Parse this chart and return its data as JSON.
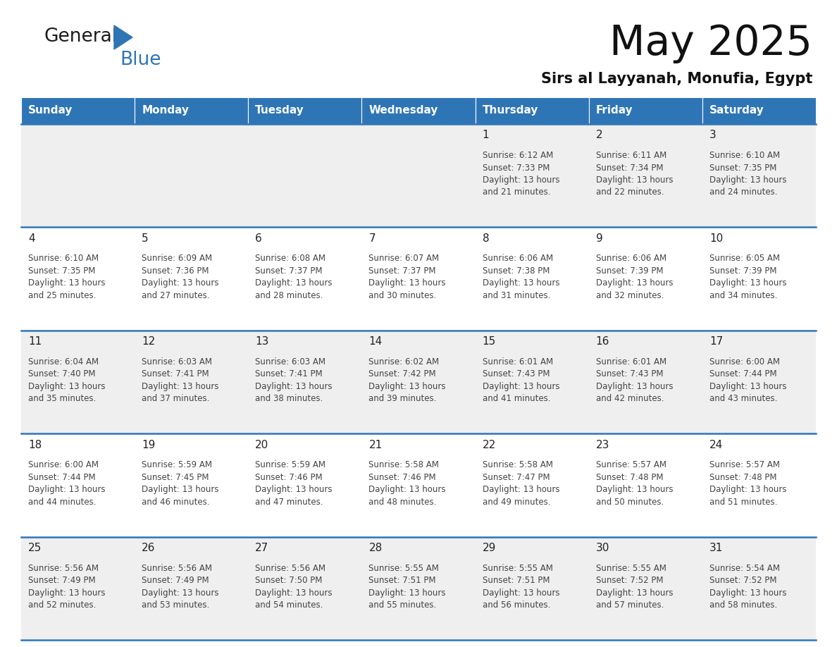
{
  "title": "May 2025",
  "subtitle": "Sirs al Layyanah, Monufia, Egypt",
  "days_of_week": [
    "Sunday",
    "Monday",
    "Tuesday",
    "Wednesday",
    "Thursday",
    "Friday",
    "Saturday"
  ],
  "header_bg": "#2E75B6",
  "header_text": "#FFFFFF",
  "row_bg_odd": "#EFEFEF",
  "row_bg_even": "#FFFFFF",
  "text_color": "#444444",
  "line_color": "#2E75B6",
  "calendar_data": [
    [
      {
        "day": "",
        "sunrise": "",
        "sunset": "",
        "daylight": ""
      },
      {
        "day": "",
        "sunrise": "",
        "sunset": "",
        "daylight": ""
      },
      {
        "day": "",
        "sunrise": "",
        "sunset": "",
        "daylight": ""
      },
      {
        "day": "",
        "sunrise": "",
        "sunset": "",
        "daylight": ""
      },
      {
        "day": "1",
        "sunrise": "6:12 AM",
        "sunset": "7:33 PM",
        "daylight": "13 hours and 21 minutes."
      },
      {
        "day": "2",
        "sunrise": "6:11 AM",
        "sunset": "7:34 PM",
        "daylight": "13 hours and 22 minutes."
      },
      {
        "day": "3",
        "sunrise": "6:10 AM",
        "sunset": "7:35 PM",
        "daylight": "13 hours and 24 minutes."
      }
    ],
    [
      {
        "day": "4",
        "sunrise": "6:10 AM",
        "sunset": "7:35 PM",
        "daylight": "13 hours and 25 minutes."
      },
      {
        "day": "5",
        "sunrise": "6:09 AM",
        "sunset": "7:36 PM",
        "daylight": "13 hours and 27 minutes."
      },
      {
        "day": "6",
        "sunrise": "6:08 AM",
        "sunset": "7:37 PM",
        "daylight": "13 hours and 28 minutes."
      },
      {
        "day": "7",
        "sunrise": "6:07 AM",
        "sunset": "7:37 PM",
        "daylight": "13 hours and 30 minutes."
      },
      {
        "day": "8",
        "sunrise": "6:06 AM",
        "sunset": "7:38 PM",
        "daylight": "13 hours and 31 minutes."
      },
      {
        "day": "9",
        "sunrise": "6:06 AM",
        "sunset": "7:39 PM",
        "daylight": "13 hours and 32 minutes."
      },
      {
        "day": "10",
        "sunrise": "6:05 AM",
        "sunset": "7:39 PM",
        "daylight": "13 hours and 34 minutes."
      }
    ],
    [
      {
        "day": "11",
        "sunrise": "6:04 AM",
        "sunset": "7:40 PM",
        "daylight": "13 hours and 35 minutes."
      },
      {
        "day": "12",
        "sunrise": "6:03 AM",
        "sunset": "7:41 PM",
        "daylight": "13 hours and 37 minutes."
      },
      {
        "day": "13",
        "sunrise": "6:03 AM",
        "sunset": "7:41 PM",
        "daylight": "13 hours and 38 minutes."
      },
      {
        "day": "14",
        "sunrise": "6:02 AM",
        "sunset": "7:42 PM",
        "daylight": "13 hours and 39 minutes."
      },
      {
        "day": "15",
        "sunrise": "6:01 AM",
        "sunset": "7:43 PM",
        "daylight": "13 hours and 41 minutes."
      },
      {
        "day": "16",
        "sunrise": "6:01 AM",
        "sunset": "7:43 PM",
        "daylight": "13 hours and 42 minutes."
      },
      {
        "day": "17",
        "sunrise": "6:00 AM",
        "sunset": "7:44 PM",
        "daylight": "13 hours and 43 minutes."
      }
    ],
    [
      {
        "day": "18",
        "sunrise": "6:00 AM",
        "sunset": "7:44 PM",
        "daylight": "13 hours and 44 minutes."
      },
      {
        "day": "19",
        "sunrise": "5:59 AM",
        "sunset": "7:45 PM",
        "daylight": "13 hours and 46 minutes."
      },
      {
        "day": "20",
        "sunrise": "5:59 AM",
        "sunset": "7:46 PM",
        "daylight": "13 hours and 47 minutes."
      },
      {
        "day": "21",
        "sunrise": "5:58 AM",
        "sunset": "7:46 PM",
        "daylight": "13 hours and 48 minutes."
      },
      {
        "day": "22",
        "sunrise": "5:58 AM",
        "sunset": "7:47 PM",
        "daylight": "13 hours and 49 minutes."
      },
      {
        "day": "23",
        "sunrise": "5:57 AM",
        "sunset": "7:48 PM",
        "daylight": "13 hours and 50 minutes."
      },
      {
        "day": "24",
        "sunrise": "5:57 AM",
        "sunset": "7:48 PM",
        "daylight": "13 hours and 51 minutes."
      }
    ],
    [
      {
        "day": "25",
        "sunrise": "5:56 AM",
        "sunset": "7:49 PM",
        "daylight": "13 hours and 52 minutes."
      },
      {
        "day": "26",
        "sunrise": "5:56 AM",
        "sunset": "7:49 PM",
        "daylight": "13 hours and 53 minutes."
      },
      {
        "day": "27",
        "sunrise": "5:56 AM",
        "sunset": "7:50 PM",
        "daylight": "13 hours and 54 minutes."
      },
      {
        "day": "28",
        "sunrise": "5:55 AM",
        "sunset": "7:51 PM",
        "daylight": "13 hours and 55 minutes."
      },
      {
        "day": "29",
        "sunrise": "5:55 AM",
        "sunset": "7:51 PM",
        "daylight": "13 hours and 56 minutes."
      },
      {
        "day": "30",
        "sunrise": "5:55 AM",
        "sunset": "7:52 PM",
        "daylight": "13 hours and 57 minutes."
      },
      {
        "day": "31",
        "sunrise": "5:54 AM",
        "sunset": "7:52 PM",
        "daylight": "13 hours and 58 minutes."
      }
    ]
  ],
  "logo_general_color": "#1a1a1a",
  "logo_blue_color": "#2E75B6",
  "triangle_color": "#2E75B6"
}
